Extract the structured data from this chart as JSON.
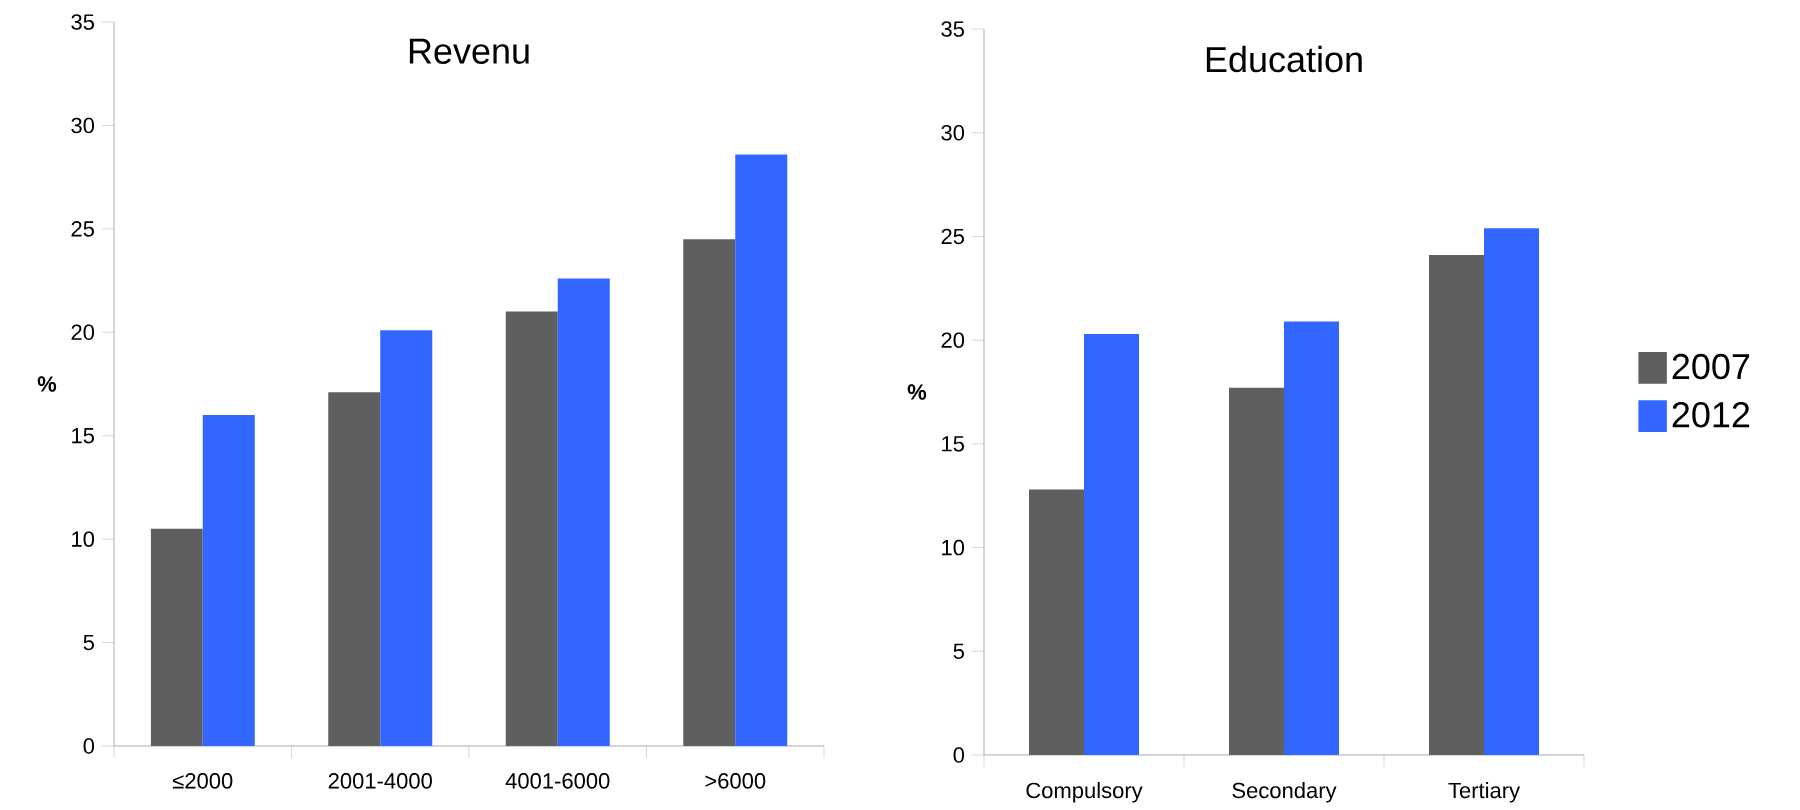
{
  "chart_data": [
    {
      "type": "bar",
      "title": "Revenu",
      "ylabel": "%",
      "categories": [
        "≤2000",
        "2001-4000",
        "4001-6000",
        ">6000"
      ],
      "series": [
        {
          "color": "#5f5f5f",
          "values": [
            10.5,
            17.1,
            21.0,
            24.5
          ]
        },
        {
          "color": "#3366ff",
          "values": [
            16.0,
            20.1,
            22.6,
            28.6
          ]
        }
      ],
      "ylim": [
        0,
        35
      ],
      "yticks": [
        0,
        5,
        10,
        15,
        20,
        25,
        30,
        35
      ],
      "legend": false
    },
    {
      "type": "bar",
      "title": "Education",
      "ylabel": "%",
      "categories": [
        "Compulsory",
        "Secondary",
        "Tertiary"
      ],
      "series": [
        {
          "name": "2007",
          "color": "#5f5f5f",
          "values": [
            12.8,
            17.7,
            24.1
          ]
        },
        {
          "name": "2012",
          "color": "#3366ff",
          "values": [
            20.3,
            20.9,
            25.4
          ]
        }
      ],
      "ylim": [
        0,
        35
      ],
      "yticks": [
        0,
        5,
        10,
        15,
        20,
        25,
        30,
        35
      ],
      "legend": "right"
    }
  ]
}
